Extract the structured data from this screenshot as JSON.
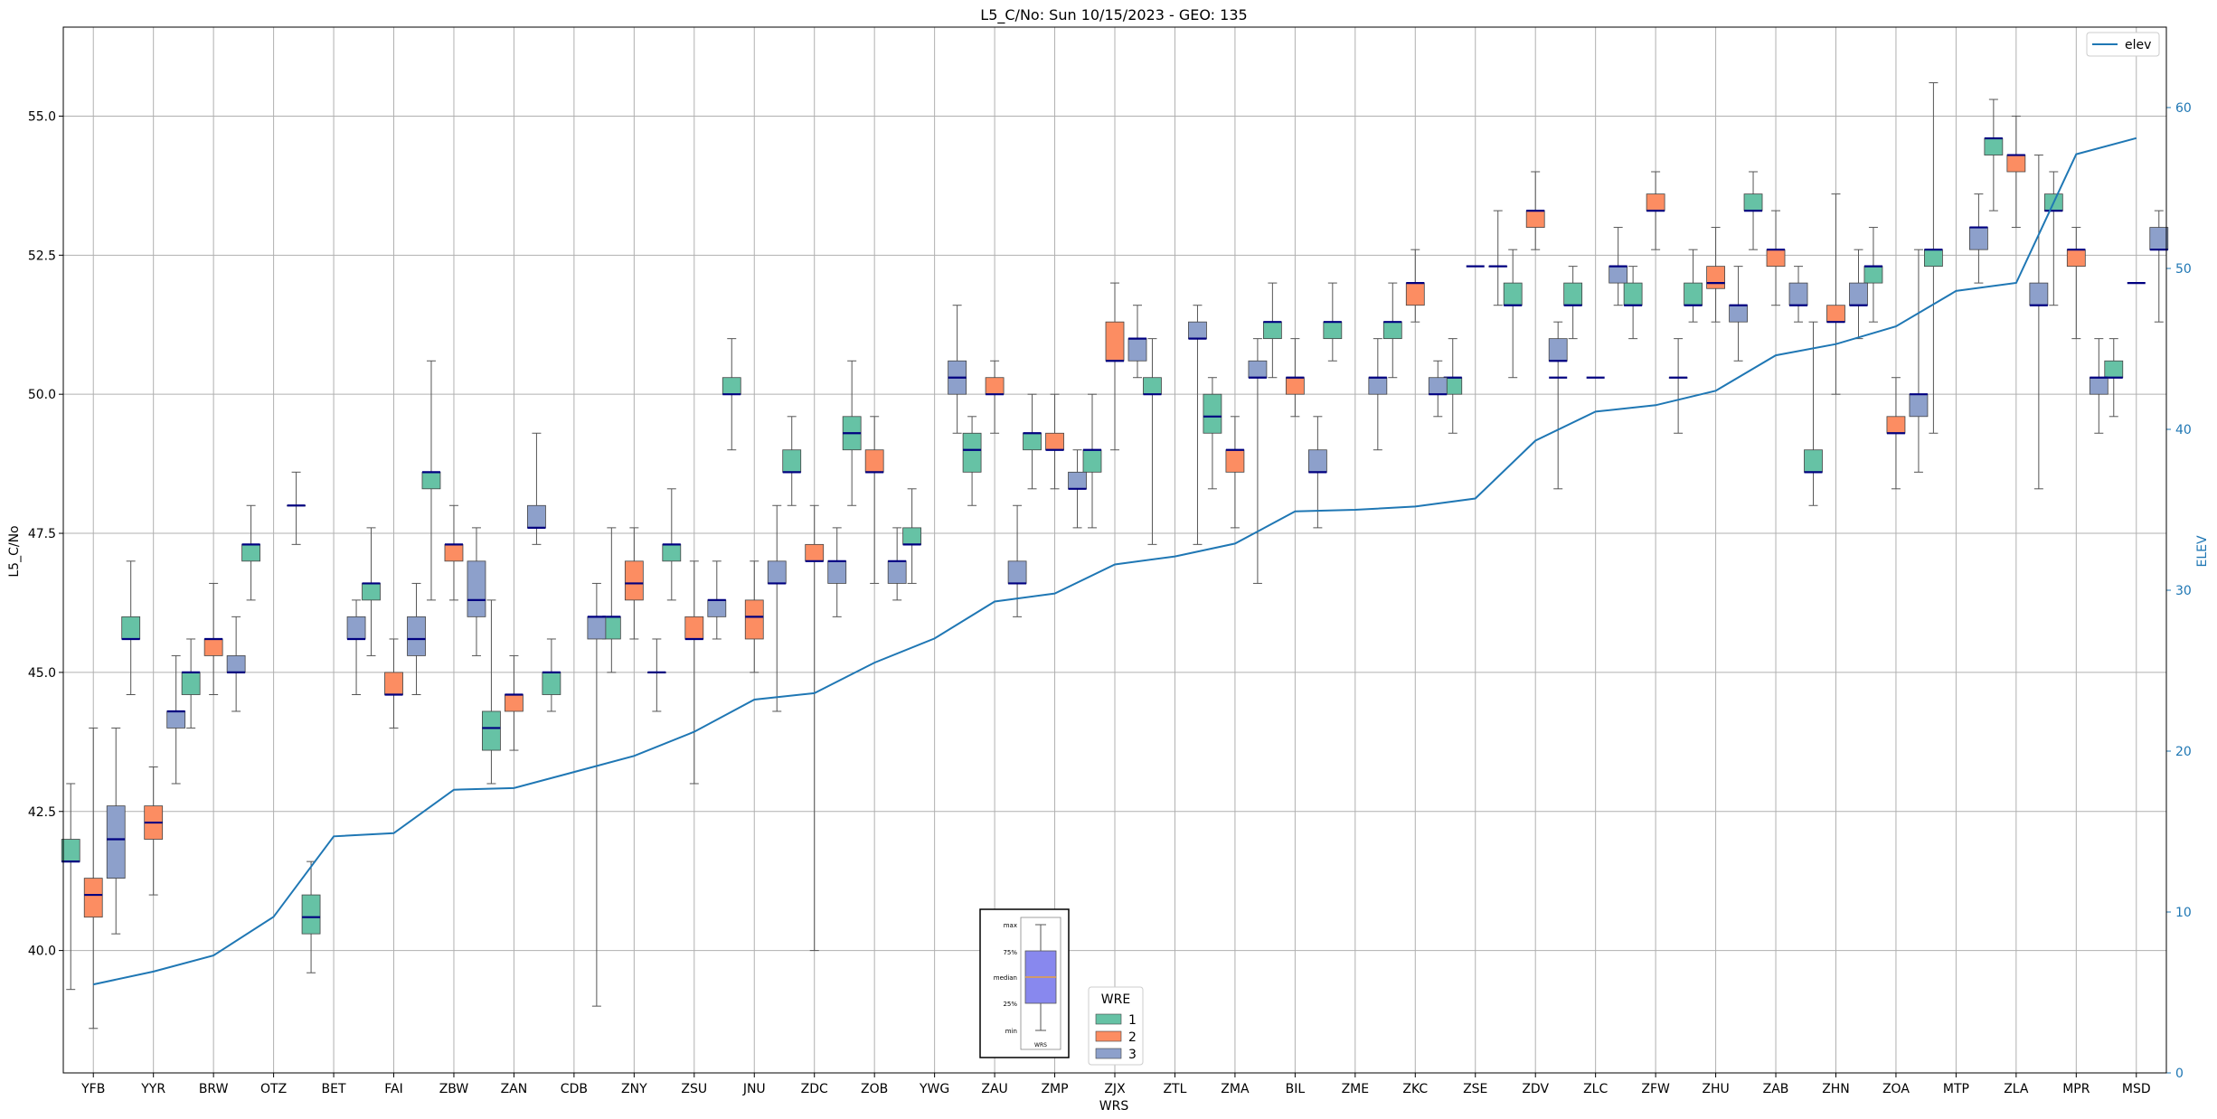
{
  "chart_data": {
    "type": "box",
    "title": "L5_C/No: Sun 10/15/2023 - GEO: 135",
    "xlabel": "WRS",
    "ylabel": "L5_C/No",
    "y2label": "ELEV",
    "ylim": [
      37.8,
      56.6
    ],
    "y2lim": [
      0,
      65
    ],
    "yticks": [
      "40.0",
      "42.5",
      "45.0",
      "47.5",
      "50.0",
      "52.5",
      "55.0"
    ],
    "y2ticks": [
      "0",
      "10",
      "20",
      "30",
      "40",
      "50",
      "60"
    ],
    "grid": true,
    "categories": [
      "YFB",
      "YYR",
      "BRW",
      "OTZ",
      "BET",
      "FAI",
      "ZBW",
      "ZAN",
      "CDB",
      "ZNY",
      "ZSU",
      "JNU",
      "ZDC",
      "ZOB",
      "YWG",
      "ZAU",
      "ZMP",
      "ZJX",
      "ZTL",
      "ZMA",
      "BIL",
      "ZME",
      "ZKC",
      "ZSE",
      "ZDV",
      "ZLC",
      "ZFW",
      "ZHU",
      "ZAB",
      "ZHN",
      "ZOA",
      "MTP",
      "ZLA",
      "MPR",
      "MSD"
    ],
    "colors": {
      "1": "#66c2a5",
      "2": "#fc8d62",
      "3": "#8da0cb"
    },
    "boxes": {
      "1": [
        {
          "cat": "YFB",
          "min": 39.3,
          "q1": 41.6,
          "med": 41.6,
          "q3": 42.0,
          "max": 43.0
        },
        {
          "cat": "YYR",
          "min": 44.6,
          "q1": 45.6,
          "med": 45.6,
          "q3": 46.0,
          "max": 47.0
        },
        {
          "cat": "BRW",
          "min": 44.0,
          "q1": 44.6,
          "med": 45.0,
          "q3": 45.0,
          "max": 45.6
        },
        {
          "cat": "OTZ",
          "min": 46.3,
          "q1": 47.0,
          "med": 47.3,
          "q3": 47.3,
          "max": 48.0
        },
        {
          "cat": "BET",
          "min": 39.6,
          "q1": 40.3,
          "med": 40.6,
          "q3": 41.0,
          "max": 41.6
        },
        {
          "cat": "FAI",
          "min": 45.3,
          "q1": 46.3,
          "med": 46.6,
          "q3": 46.6,
          "max": 47.6
        },
        {
          "cat": "ZBW",
          "min": 46.3,
          "q1": 48.3,
          "med": 48.6,
          "q3": 48.6,
          "max": 50.6
        },
        {
          "cat": "ZAN",
          "min": 43.0,
          "q1": 43.6,
          "med": 44.0,
          "q3": 44.3,
          "max": 46.3
        },
        {
          "cat": "CDB",
          "min": 44.3,
          "q1": 44.6,
          "med": 45.0,
          "q3": 45.0,
          "max": 45.6
        },
        {
          "cat": "ZNY",
          "min": 45.0,
          "q1": 45.6,
          "med": 46.0,
          "q3": 46.0,
          "max": 47.6
        },
        {
          "cat": "ZSU",
          "min": 46.3,
          "q1": 47.0,
          "med": 47.3,
          "q3": 47.3,
          "max": 48.3
        },
        {
          "cat": "JNU",
          "min": 49.0,
          "q1": 50.0,
          "med": 50.0,
          "q3": 50.3,
          "max": 51.0
        },
        {
          "cat": "ZDC",
          "min": 48.0,
          "q1": 48.6,
          "med": 48.6,
          "q3": 49.0,
          "max": 49.6
        },
        {
          "cat": "ZOB",
          "min": 48.0,
          "q1": 49.0,
          "med": 49.3,
          "q3": 49.6,
          "max": 50.6
        },
        {
          "cat": "YWG",
          "min": 46.6,
          "q1": 47.3,
          "med": 47.3,
          "q3": 47.6,
          "max": 48.3
        },
        {
          "cat": "ZAU",
          "min": 48.0,
          "q1": 48.6,
          "med": 49.0,
          "q3": 49.3,
          "max": 49.6
        },
        {
          "cat": "ZMP",
          "min": 48.3,
          "q1": 49.0,
          "med": 49.3,
          "q3": 49.3,
          "max": 50.0
        },
        {
          "cat": "ZJX",
          "min": 47.6,
          "q1": 48.6,
          "med": 49.0,
          "q3": 49.0,
          "max": 50.0
        },
        {
          "cat": "ZTL",
          "min": 47.3,
          "q1": 50.0,
          "med": 50.0,
          "q3": 50.3,
          "max": 51.0
        },
        {
          "cat": "ZMA",
          "min": 48.3,
          "q1": 49.3,
          "med": 49.6,
          "q3": 50.0,
          "max": 50.3
        },
        {
          "cat": "BIL",
          "min": 50.3,
          "q1": 51.0,
          "med": 51.3,
          "q3": 51.3,
          "max": 52.0
        },
        {
          "cat": "ZME",
          "min": 50.6,
          "q1": 51.0,
          "med": 51.3,
          "q3": 51.3,
          "max": 52.0
        },
        {
          "cat": "ZKC",
          "min": 50.3,
          "q1": 51.0,
          "med": 51.3,
          "q3": 51.3,
          "max": 52.0
        },
        {
          "cat": "ZSE",
          "min": 49.3,
          "q1": 50.0,
          "med": 50.3,
          "q3": 50.3,
          "max": 51.0
        },
        {
          "cat": "ZDV",
          "min": 50.3,
          "q1": 51.6,
          "med": 51.6,
          "q3": 52.0,
          "max": 52.6
        },
        {
          "cat": "ZLC",
          "min": 51.0,
          "q1": 51.6,
          "med": 51.6,
          "q3": 52.0,
          "max": 52.3
        },
        {
          "cat": "ZFW",
          "min": 51.0,
          "q1": 51.6,
          "med": 51.6,
          "q3": 52.0,
          "max": 52.3
        },
        {
          "cat": "ZHU",
          "min": 51.3,
          "q1": 51.6,
          "med": 51.6,
          "q3": 52.0,
          "max": 52.6
        },
        {
          "cat": "ZAB",
          "min": 52.6,
          "q1": 53.3,
          "med": 53.3,
          "q3": 53.6,
          "max": 54.0
        },
        {
          "cat": "ZHN",
          "min": 48.0,
          "q1": 48.6,
          "med": 48.6,
          "q3": 49.0,
          "max": 51.3
        },
        {
          "cat": "ZOA",
          "min": 51.3,
          "q1": 52.0,
          "med": 52.3,
          "q3": 52.3,
          "max": 53.0
        },
        {
          "cat": "MTP",
          "min": 49.3,
          "q1": 52.3,
          "med": 52.6,
          "q3": 52.6,
          "max": 55.6
        },
        {
          "cat": "ZLA",
          "min": 53.3,
          "q1": 54.3,
          "med": 54.6,
          "q3": 54.6,
          "max": 55.3
        },
        {
          "cat": "MPR",
          "min": 51.6,
          "q1": 53.3,
          "med": 53.3,
          "q3": 53.6,
          "max": 54.0
        },
        {
          "cat": "MSD",
          "min": 49.6,
          "q1": 50.3,
          "med": 50.3,
          "q3": 50.6,
          "max": 51.0
        }
      ],
      "2": [
        {
          "cat": "YFB",
          "min": 38.6,
          "q1": 40.6,
          "med": 41.0,
          "q3": 41.3,
          "max": 44.0
        },
        {
          "cat": "YYR",
          "min": 41.0,
          "q1": 42.0,
          "med": 42.3,
          "q3": 42.6,
          "max": 43.3
        },
        {
          "cat": "BRW",
          "min": 44.6,
          "q1": 45.3,
          "med": 45.6,
          "q3": 45.6,
          "max": 46.6
        },
        {
          "cat": "FAI",
          "min": 44.0,
          "q1": 44.6,
          "med": 44.6,
          "q3": 45.0,
          "max": 45.6
        },
        {
          "cat": "ZBW",
          "min": 46.3,
          "q1": 47.0,
          "med": 47.3,
          "q3": 47.3,
          "max": 48.0
        },
        {
          "cat": "ZAN",
          "min": 43.6,
          "q1": 44.3,
          "med": 44.6,
          "q3": 44.6,
          "max": 45.3
        },
        {
          "cat": "ZNY",
          "min": 45.6,
          "q1": 46.3,
          "med": 46.6,
          "q3": 47.0,
          "max": 47.6
        },
        {
          "cat": "ZSU",
          "min": 43.0,
          "q1": 45.6,
          "med": 45.6,
          "q3": 46.0,
          "max": 47.0
        },
        {
          "cat": "JNU",
          "min": 45.0,
          "q1": 45.6,
          "med": 46.0,
          "q3": 46.3,
          "max": 47.0
        },
        {
          "cat": "ZDC",
          "min": 40.0,
          "q1": 47.0,
          "med": 47.0,
          "q3": 47.3,
          "max": 48.0
        },
        {
          "cat": "ZOB",
          "min": 46.6,
          "q1": 48.6,
          "med": 48.6,
          "q3": 49.0,
          "max": 49.6
        },
        {
          "cat": "ZAU",
          "min": 49.3,
          "q1": 50.0,
          "med": 50.0,
          "q3": 50.3,
          "max": 50.6
        },
        {
          "cat": "ZMP",
          "min": 48.3,
          "q1": 49.0,
          "med": 49.0,
          "q3": 49.3,
          "max": 50.0
        },
        {
          "cat": "ZJX",
          "min": 49.0,
          "q1": 50.6,
          "med": 50.6,
          "q3": 51.3,
          "max": 52.0
        },
        {
          "cat": "ZMA",
          "min": 47.6,
          "q1": 48.6,
          "med": 49.0,
          "q3": 49.0,
          "max": 49.6
        },
        {
          "cat": "BIL",
          "min": 49.6,
          "q1": 50.0,
          "med": 50.3,
          "q3": 50.3,
          "max": 51.0
        },
        {
          "cat": "ZKC",
          "min": 51.3,
          "q1": 51.6,
          "med": 52.0,
          "q3": 52.0,
          "max": 52.6
        },
        {
          "cat": "ZDV",
          "min": 52.6,
          "q1": 53.0,
          "med": 53.3,
          "q3": 53.3,
          "max": 54.0
        },
        {
          "cat": "ZFW",
          "min": 52.6,
          "q1": 53.3,
          "med": 53.3,
          "q3": 53.6,
          "max": 54.0
        },
        {
          "cat": "ZHU",
          "min": 51.3,
          "q1": 51.9,
          "med": 52.0,
          "q3": 52.3,
          "max": 53.0
        },
        {
          "cat": "ZAB",
          "min": 51.6,
          "q1": 52.3,
          "med": 52.6,
          "q3": 52.6,
          "max": 53.3
        },
        {
          "cat": "ZHN",
          "min": 50.0,
          "q1": 51.3,
          "med": 51.3,
          "q3": 51.6,
          "max": 53.6
        },
        {
          "cat": "ZOA",
          "min": 48.3,
          "q1": 49.3,
          "med": 49.3,
          "q3": 49.6,
          "max": 50.3
        },
        {
          "cat": "ZLA",
          "min": 53.0,
          "q1": 54.0,
          "med": 54.3,
          "q3": 54.3,
          "max": 55.0
        },
        {
          "cat": "MPR",
          "min": 51.0,
          "q1": 52.3,
          "med": 52.6,
          "q3": 52.6,
          "max": 53.0
        }
      ],
      "3": [
        {
          "cat": "YFB",
          "min": 40.3,
          "q1": 41.3,
          "med": 42.0,
          "q3": 42.6,
          "max": 44.0
        },
        {
          "cat": "YYR",
          "min": 43.0,
          "q1": 44.0,
          "med": 44.3,
          "q3": 44.3,
          "max": 45.3
        },
        {
          "cat": "BRW",
          "min": 44.3,
          "q1": 45.0,
          "med": 45.0,
          "q3": 45.3,
          "max": 46.0
        },
        {
          "cat": "OTZ",
          "min": 47.3,
          "q1": 48.0,
          "med": 48.0,
          "q3": 48.0,
          "max": 48.6
        },
        {
          "cat": "BET",
          "min": 44.6,
          "q1": 45.6,
          "med": 45.6,
          "q3": 46.0,
          "max": 46.3
        },
        {
          "cat": "FAI",
          "min": 44.6,
          "q1": 45.3,
          "med": 45.6,
          "q3": 46.0,
          "max": 46.6
        },
        {
          "cat": "ZBW",
          "min": 45.3,
          "q1": 46.0,
          "med": 46.3,
          "q3": 47.0,
          "max": 47.6
        },
        {
          "cat": "ZAN",
          "min": 47.3,
          "q1": 47.6,
          "med": 47.6,
          "q3": 48.0,
          "max": 49.3
        },
        {
          "cat": "CDB",
          "min": 39.0,
          "q1": 45.6,
          "med": 46.0,
          "q3": 46.0,
          "max": 46.6
        },
        {
          "cat": "ZNY",
          "min": 44.3,
          "q1": 45.0,
          "med": 45.0,
          "q3": 45.0,
          "max": 45.6
        },
        {
          "cat": "ZSU",
          "min": 45.6,
          "q1": 46.0,
          "med": 46.3,
          "q3": 46.3,
          "max": 47.0
        },
        {
          "cat": "JNU",
          "min": 44.3,
          "q1": 46.6,
          "med": 46.6,
          "q3": 47.0,
          "max": 48.0
        },
        {
          "cat": "ZDC",
          "min": 46.0,
          "q1": 46.6,
          "med": 47.0,
          "q3": 47.0,
          "max": 47.6
        },
        {
          "cat": "ZOB",
          "min": 46.3,
          "q1": 46.6,
          "med": 47.0,
          "q3": 47.0,
          "max": 47.6
        },
        {
          "cat": "YWG",
          "min": 49.3,
          "q1": 50.0,
          "med": 50.3,
          "q3": 50.6,
          "max": 51.6
        },
        {
          "cat": "ZAU",
          "min": 46.0,
          "q1": 46.6,
          "med": 46.6,
          "q3": 47.0,
          "max": 48.0
        },
        {
          "cat": "ZMP",
          "min": 47.6,
          "q1": 48.3,
          "med": 48.3,
          "q3": 48.6,
          "max": 49.0
        },
        {
          "cat": "ZJX",
          "min": 50.3,
          "q1": 50.6,
          "med": 51.0,
          "q3": 51.0,
          "max": 51.6
        },
        {
          "cat": "ZTL",
          "min": 47.3,
          "q1": 51.0,
          "med": 51.0,
          "q3": 51.3,
          "max": 51.6
        },
        {
          "cat": "ZMA",
          "min": 46.6,
          "q1": 50.3,
          "med": 50.3,
          "q3": 50.6,
          "max": 51.0
        },
        {
          "cat": "BIL",
          "min": 47.6,
          "q1": 48.6,
          "med": 48.6,
          "q3": 49.0,
          "max": 49.6
        },
        {
          "cat": "ZME",
          "min": 49.0,
          "q1": 50.0,
          "med": 50.3,
          "q3": 50.3,
          "max": 51.0
        },
        {
          "cat": "ZKC",
          "min": 49.6,
          "q1": 50.0,
          "med": 50.0,
          "q3": 50.3,
          "max": 50.6
        },
        {
          "cat": "ZSE",
          "min": 51.6,
          "q1": 52.3,
          "med": 52.3,
          "q3": 52.3,
          "max": 53.3
        },
        {
          "cat": "ZDV",
          "min": 48.3,
          "q1": 50.6,
          "med": 50.6,
          "q3": 51.0,
          "max": 51.3
        },
        {
          "cat": "ZLC",
          "min": 51.6,
          "q1": 52.0,
          "med": 52.3,
          "q3": 52.3,
          "max": 53.0
        },
        {
          "cat": "ZFW",
          "min": 49.3,
          "q1": 50.3,
          "med": 50.3,
          "q3": 50.3,
          "max": 51.0
        },
        {
          "cat": "ZHU",
          "min": 50.6,
          "q1": 51.3,
          "med": 51.6,
          "q3": 51.6,
          "max": 52.3
        },
        {
          "cat": "ZAB",
          "min": 51.3,
          "q1": 51.6,
          "med": 51.6,
          "q3": 52.0,
          "max": 52.3
        },
        {
          "cat": "ZHN",
          "min": 51.0,
          "q1": 51.6,
          "med": 51.6,
          "q3": 52.0,
          "max": 52.6
        },
        {
          "cat": "ZOA",
          "min": 48.6,
          "q1": 49.6,
          "med": 50.0,
          "q3": 50.0,
          "max": 52.6
        },
        {
          "cat": "MTP",
          "min": 52.0,
          "q1": 52.6,
          "med": 53.0,
          "q3": 53.0,
          "max": 53.6
        },
        {
          "cat": "ZLA",
          "min": 48.3,
          "q1": 51.6,
          "med": 51.6,
          "q3": 52.0,
          "max": 54.3
        },
        {
          "cat": "MPR",
          "min": 49.3,
          "q1": 50.0,
          "med": 50.3,
          "q3": 50.3,
          "max": 51.0
        },
        {
          "cat": "MSD",
          "min": 51.3,
          "q1": 52.6,
          "med": 52.6,
          "q3": 53.0,
          "max": 53.3
        }
      ]
    },
    "singles": [
      {
        "cat": "ZSE",
        "group": "2",
        "value": 52.3
      },
      {
        "cat": "ZDV",
        "group": "3",
        "value": 50.3
      },
      {
        "cat": "ZLC",
        "group": "2",
        "value": 50.3
      },
      {
        "cat": "MSD",
        "group": "2",
        "value": 52.0
      }
    ],
    "elev": {
      "name": "elev",
      "color": "#1f77b4",
      "values": [
        5.5,
        6.3,
        7.3,
        9.7,
        14.7,
        14.9,
        17.6,
        17.7,
        18.7,
        19.7,
        21.2,
        23.2,
        23.6,
        25.5,
        27.0,
        29.3,
        29.8,
        31.6,
        32.1,
        32.9,
        34.9,
        35.0,
        35.2,
        35.7,
        39.3,
        41.1,
        41.5,
        42.4,
        44.6,
        45.3,
        46.4,
        48.6,
        49.1,
        57.1,
        58.1
      ]
    },
    "legend_elev": {
      "label": "elev",
      "position": "top-right"
    },
    "legend_wre": {
      "title": "WRE",
      "entries": [
        "1",
        "2",
        "3"
      ],
      "position": "bottom-center"
    },
    "inset": {
      "labels": [
        "max",
        "75%",
        "median",
        "25%",
        "min"
      ],
      "xlabel": "WRS",
      "box_color": "#8888ee",
      "median_color": "#e8a040"
    }
  }
}
